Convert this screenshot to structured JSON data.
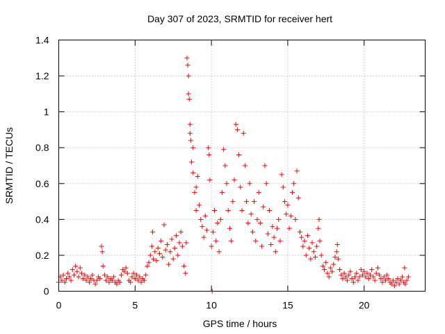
{
  "chart_data": {
    "type": "scatter",
    "title": "Day 307 of 2023, SRMTID for receiver hert",
    "xlabel": "GPS time / hours",
    "ylabel": "SRMTID / TECUs",
    "xlim": [
      0,
      24
    ],
    "ylim": [
      0,
      1.4
    ],
    "xticks": [
      0,
      5,
      10,
      15,
      20
    ],
    "xtick_labels": [
      "0",
      "5",
      "10",
      "15",
      "20"
    ],
    "yticks": [
      0,
      0.2,
      0.4,
      0.6,
      0.8,
      1.0,
      1.2,
      1.4
    ],
    "ytick_labels": [
      "0",
      "0.2",
      "0.4",
      "0.6",
      "0.8",
      "1",
      "1.2",
      "1.4"
    ],
    "grid": true,
    "marker": "+",
    "color": "#ff0000",
    "series": [
      {
        "name": "SRMTID",
        "points": [
          [
            0.0,
            0.05
          ],
          [
            0.1,
            0.08
          ],
          [
            0.2,
            0.06
          ],
          [
            0.3,
            0.09
          ],
          [
            0.4,
            0.05
          ],
          [
            0.5,
            0.07
          ],
          [
            0.6,
            0.1
          ],
          [
            0.7,
            0.08
          ],
          [
            0.8,
            0.06
          ],
          [
            0.9,
            0.12
          ],
          [
            1.0,
            0.09
          ],
          [
            1.1,
            0.14
          ],
          [
            1.2,
            0.11
          ],
          [
            1.3,
            0.08
          ],
          [
            1.4,
            0.13
          ],
          [
            1.5,
            0.1
          ],
          [
            1.6,
            0.07
          ],
          [
            1.7,
            0.09
          ],
          [
            1.8,
            0.06
          ],
          [
            1.9,
            0.08
          ],
          [
            2.0,
            0.05
          ],
          [
            2.1,
            0.07
          ],
          [
            2.2,
            0.09
          ],
          [
            2.3,
            0.06
          ],
          [
            2.4,
            0.04
          ],
          [
            2.5,
            0.06
          ],
          [
            2.6,
            0.08
          ],
          [
            2.7,
            0.07
          ],
          [
            2.8,
            0.25
          ],
          [
            2.85,
            0.22
          ],
          [
            2.9,
            0.14
          ],
          [
            3.0,
            0.09
          ],
          [
            3.1,
            0.06
          ],
          [
            3.2,
            0.08
          ],
          [
            3.3,
            0.05
          ],
          [
            3.4,
            0.07
          ],
          [
            3.5,
            0.06
          ],
          [
            3.6,
            0.08
          ],
          [
            3.7,
            0.05
          ],
          [
            3.8,
            0.04
          ],
          [
            3.9,
            0.06
          ],
          [
            4.0,
            0.05
          ],
          [
            4.1,
            0.09
          ],
          [
            4.2,
            0.12
          ],
          [
            4.3,
            0.11
          ],
          [
            4.4,
            0.13
          ],
          [
            4.5,
            0.1
          ],
          [
            4.6,
            0.06
          ],
          [
            4.7,
            0.05
          ],
          [
            4.8,
            0.08
          ],
          [
            4.9,
            0.1
          ],
          [
            5.0,
            0.07
          ],
          [
            5.1,
            0.09
          ],
          [
            5.2,
            0.06
          ],
          [
            5.3,
            0.08
          ],
          [
            5.4,
            0.05
          ],
          [
            5.5,
            0.07
          ],
          [
            5.6,
            0.06
          ],
          [
            5.7,
            0.09
          ],
          [
            5.8,
            0.14
          ],
          [
            5.9,
            0.16
          ],
          [
            6.0,
            0.2
          ],
          [
            6.1,
            0.25
          ],
          [
            6.15,
            0.33
          ],
          [
            6.2,
            0.18
          ],
          [
            6.3,
            0.22
          ],
          [
            6.4,
            0.17
          ],
          [
            6.5,
            0.24
          ],
          [
            6.6,
            0.21
          ],
          [
            6.7,
            0.28
          ],
          [
            6.8,
            0.19
          ],
          [
            6.9,
            0.37
          ],
          [
            7.0,
            0.23
          ],
          [
            7.1,
            0.26
          ],
          [
            7.2,
            0.15
          ],
          [
            7.3,
            0.22
          ],
          [
            7.4,
            0.29
          ],
          [
            7.5,
            0.18
          ],
          [
            7.6,
            0.24
          ],
          [
            7.7,
            0.31
          ],
          [
            7.8,
            0.2
          ],
          [
            7.9,
            0.27
          ],
          [
            8.0,
            0.33
          ],
          [
            8.1,
            0.25
          ],
          [
            8.2,
            0.14
          ],
          [
            8.3,
            0.1
          ],
          [
            8.35,
            0.27
          ],
          [
            8.4,
            1.3
          ],
          [
            8.45,
            1.26
          ],
          [
            8.5,
            1.1
          ],
          [
            8.5,
            1.2
          ],
          [
            8.55,
            1.07
          ],
          [
            8.6,
            0.93
          ],
          [
            8.6,
            0.88
          ],
          [
            8.65,
            0.84
          ],
          [
            8.7,
            0.72
          ],
          [
            8.8,
            0.8
          ],
          [
            8.8,
            0.66
          ],
          [
            8.9,
            0.55
          ],
          [
            9.0,
            0.58
          ],
          [
            9.0,
            0.45
          ],
          [
            9.1,
            0.64
          ],
          [
            9.2,
            0.48
          ],
          [
            9.3,
            0.4
          ],
          [
            9.4,
            0.36
          ],
          [
            9.5,
            0.3
          ],
          [
            9.6,
            0.42
          ],
          [
            9.7,
            0.34
          ],
          [
            9.8,
            0.8
          ],
          [
            9.85,
            0.76
          ],
          [
            9.9,
            0.62
          ],
          [
            10.0,
            0.25
          ],
          [
            10.05,
            0.0
          ],
          [
            10.1,
            0.33
          ],
          [
            10.2,
            0.45
          ],
          [
            10.3,
            0.28
          ],
          [
            10.4,
            0.38
          ],
          [
            10.5,
            0.22
          ],
          [
            10.6,
            0.4
          ],
          [
            10.7,
            0.55
          ],
          [
            10.8,
            0.79
          ],
          [
            10.9,
            0.7
          ],
          [
            11.0,
            0.6
          ],
          [
            11.1,
            0.45
          ],
          [
            11.2,
            0.35
          ],
          [
            11.3,
            0.28
          ],
          [
            11.4,
            0.5
          ],
          [
            11.5,
            0.62
          ],
          [
            11.6,
            0.93
          ],
          [
            11.7,
            0.9
          ],
          [
            11.8,
            0.76
          ],
          [
            11.9,
            0.58
          ],
          [
            12.0,
            0.45
          ],
          [
            12.1,
            0.88
          ],
          [
            12.2,
            0.7
          ],
          [
            12.3,
            0.5
          ],
          [
            12.4,
            0.38
          ],
          [
            12.5,
            0.6
          ],
          [
            12.6,
            0.43
          ],
          [
            12.7,
            0.33
          ],
          [
            12.8,
            0.5
          ],
          [
            12.9,
            0.28
          ],
          [
            13.0,
            0.4
          ],
          [
            13.1,
            0.55
          ],
          [
            13.2,
            0.38
          ],
          [
            13.3,
            0.25
          ],
          [
            13.4,
            0.47
          ],
          [
            13.5,
            0.7
          ],
          [
            13.6,
            0.6
          ],
          [
            13.7,
            0.32
          ],
          [
            13.8,
            0.45
          ],
          [
            13.9,
            0.26
          ],
          [
            14.0,
            0.36
          ],
          [
            14.1,
            0.3
          ],
          [
            14.2,
            0.22
          ],
          [
            14.3,
            0.35
          ],
          [
            14.4,
            0.4
          ],
          [
            14.5,
            0.28
          ],
          [
            14.6,
            0.65
          ],
          [
            14.7,
            0.58
          ],
          [
            14.8,
            0.5
          ],
          [
            14.9,
            0.43
          ],
          [
            15.0,
            0.48
          ],
          [
            15.1,
            0.35
          ],
          [
            15.2,
            0.42
          ],
          [
            15.3,
            0.55
          ],
          [
            15.4,
            0.6
          ],
          [
            15.5,
            0.4
          ],
          [
            15.6,
            0.67
          ],
          [
            15.7,
            0.52
          ],
          [
            15.8,
            0.33
          ],
          [
            15.9,
            0.3
          ],
          [
            16.0,
            0.25
          ],
          [
            16.1,
            0.28
          ],
          [
            16.2,
            0.2
          ],
          [
            16.3,
            0.31
          ],
          [
            16.4,
            0.24
          ],
          [
            16.5,
            0.18
          ],
          [
            16.6,
            0.27
          ],
          [
            16.7,
            0.22
          ],
          [
            16.8,
            0.19
          ],
          [
            16.9,
            0.25
          ],
          [
            17.0,
            0.35
          ],
          [
            17.05,
            0.4
          ],
          [
            17.1,
            0.28
          ],
          [
            17.2,
            0.2
          ],
          [
            17.3,
            0.14
          ],
          [
            17.4,
            0.12
          ],
          [
            17.5,
            0.16
          ],
          [
            17.6,
            0.1
          ],
          [
            17.7,
            0.08
          ],
          [
            17.8,
            0.13
          ],
          [
            17.9,
            0.11
          ],
          [
            18.0,
            0.15
          ],
          [
            18.1,
            0.19
          ],
          [
            18.2,
            0.22
          ],
          [
            18.25,
            0.26
          ],
          [
            18.3,
            0.18
          ],
          [
            18.4,
            0.12
          ],
          [
            18.5,
            0.09
          ],
          [
            18.6,
            0.07
          ],
          [
            18.7,
            0.1
          ],
          [
            18.8,
            0.08
          ],
          [
            18.9,
            0.06
          ],
          [
            19.0,
            0.09
          ],
          [
            19.1,
            0.11
          ],
          [
            19.2,
            0.07
          ],
          [
            19.3,
            0.05
          ],
          [
            19.4,
            0.08
          ],
          [
            19.5,
            0.1
          ],
          [
            19.6,
            0.06
          ],
          [
            19.7,
            0.08
          ],
          [
            19.8,
            0.12
          ],
          [
            19.9,
            0.09
          ],
          [
            20.0,
            0.11
          ],
          [
            20.1,
            0.08
          ],
          [
            20.2,
            0.1
          ],
          [
            20.3,
            0.07
          ],
          [
            20.4,
            0.09
          ],
          [
            20.5,
            0.12
          ],
          [
            20.6,
            0.08
          ],
          [
            20.7,
            0.06
          ],
          [
            20.8,
            0.1
          ],
          [
            20.9,
            0.13
          ],
          [
            21.0,
            0.09
          ],
          [
            21.1,
            0.07
          ],
          [
            21.2,
            0.05
          ],
          [
            21.3,
            0.08
          ],
          [
            21.4,
            0.06
          ],
          [
            21.5,
            0.09
          ],
          [
            21.6,
            0.07
          ],
          [
            21.7,
            0.05
          ],
          [
            21.8,
            0.04
          ],
          [
            21.9,
            0.06
          ],
          [
            22.0,
            0.03
          ],
          [
            22.1,
            0.05
          ],
          [
            22.2,
            0.07
          ],
          [
            22.3,
            0.04
          ],
          [
            22.4,
            0.06
          ],
          [
            22.5,
            0.08
          ],
          [
            22.6,
            0.05
          ],
          [
            22.65,
            0.13
          ],
          [
            22.7,
            0.04
          ],
          [
            22.8,
            0.06
          ],
          [
            22.9,
            0.08
          ]
        ]
      }
    ]
  }
}
